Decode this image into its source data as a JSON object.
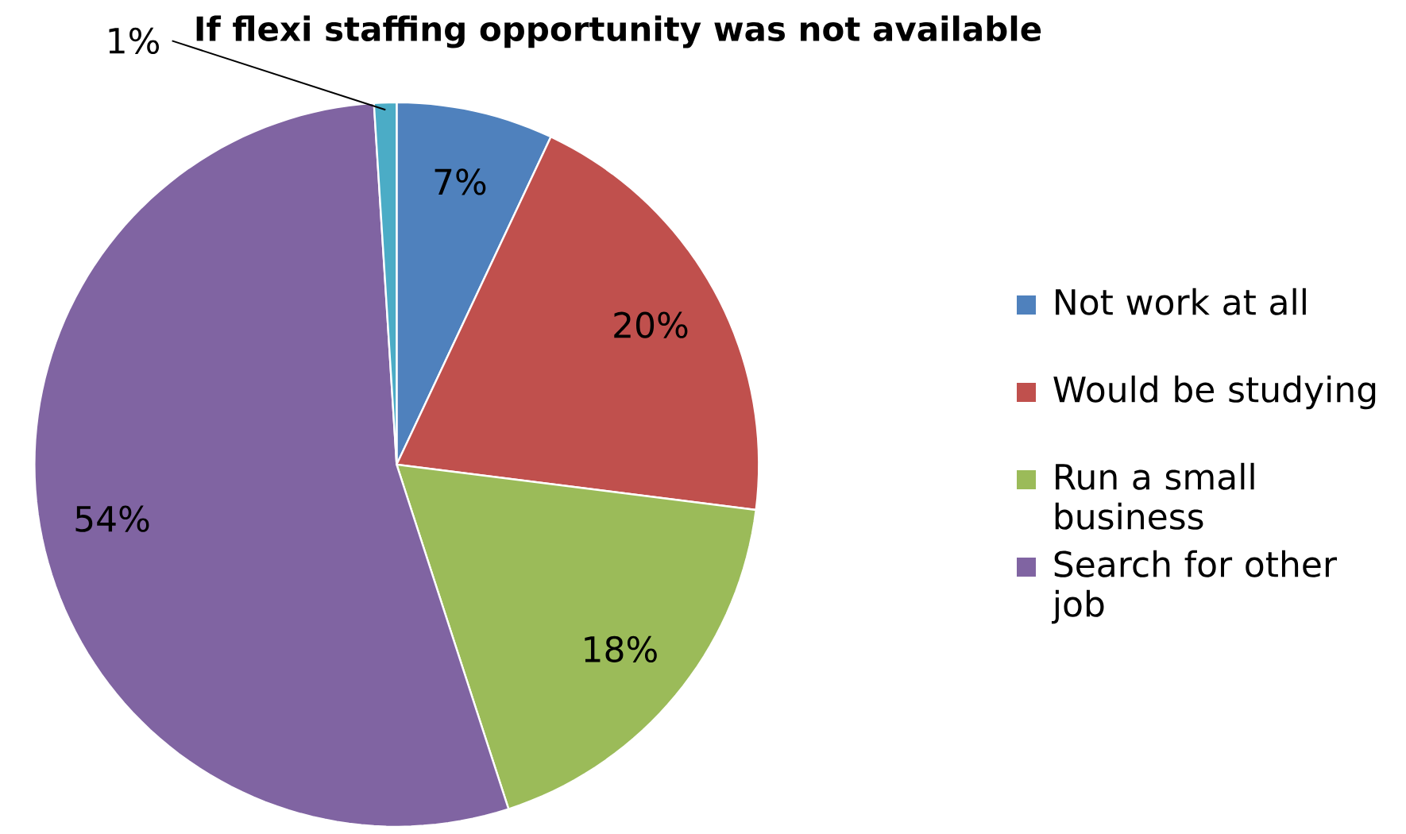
{
  "chart_data": {
    "type": "pie",
    "title": "If flexi staffing opportunity was not available",
    "categories": [
      "Not work at all",
      "Would be studying",
      "Run a small business",
      "Search for other job",
      null
    ],
    "values": [
      7,
      20,
      18,
      54,
      1
    ],
    "colors": [
      "#4f81bd",
      "#c0504d",
      "#9bbb59",
      "#8064a2",
      "#4bacc6"
    ],
    "value_labels": [
      "7%",
      "20%",
      "18%",
      "54%",
      "1%"
    ],
    "legend": "right"
  }
}
